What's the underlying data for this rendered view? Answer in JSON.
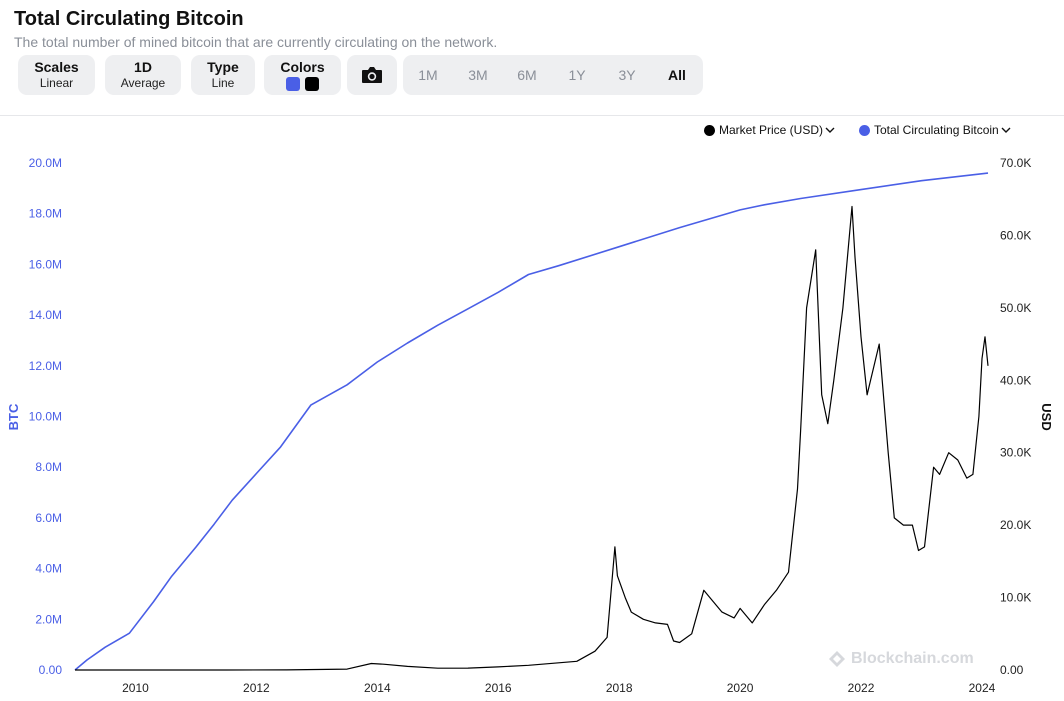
{
  "header": {
    "title": "Total Circulating Bitcoin",
    "subtitle": "The total number of mined bitcoin that are currently circulating on the network."
  },
  "toolbar": {
    "scales": {
      "label": "Scales",
      "value": "Linear"
    },
    "period": {
      "label": "1D",
      "value": "Average"
    },
    "type": {
      "label": "Type",
      "value": "Line"
    },
    "colors": {
      "label": "Colors",
      "swatches": [
        "#4a5fe6",
        "#000000"
      ]
    },
    "camera_icon": "camera-icon",
    "ranges": [
      "1M",
      "3M",
      "6M",
      "1Y",
      "3Y",
      "All"
    ],
    "active_range": "All"
  },
  "legend": {
    "items": [
      {
        "label": "Market Price (USD)",
        "color": "#000000"
      },
      {
        "label": "Total Circulating Bitcoin",
        "color": "#4a5fe6"
      }
    ]
  },
  "watermark": "Blockchain.com",
  "chart_data": {
    "type": "line",
    "xlabel": "",
    "x_ticks": [
      "2010",
      "2012",
      "2014",
      "2016",
      "2018",
      "2020",
      "2022",
      "2024"
    ],
    "xlim": [
      2009.0,
      2024.1
    ],
    "y_left": {
      "label": "BTC",
      "ylim": [
        0,
        20000000
      ],
      "ticks": [
        "0.00",
        "2.0M",
        "4.0M",
        "6.0M",
        "8.0M",
        "10.0M",
        "12.0M",
        "14.0M",
        "16.0M",
        "18.0M",
        "20.0M"
      ]
    },
    "y_right": {
      "label": "USD",
      "ylim": [
        0,
        70000
      ],
      "ticks": [
        "0.00",
        "10.0K",
        "20.0K",
        "30.0K",
        "40.0K",
        "50.0K",
        "60.0K",
        "70.0K"
      ]
    },
    "grid": false,
    "legend_position": "top-right",
    "series": [
      {
        "name": "Total Circulating Bitcoin",
        "axis": "left",
        "color": "#4a5fe6",
        "x": [
          2009.0,
          2009.2,
          2009.5,
          2009.9,
          2010.3,
          2010.6,
          2011.0,
          2011.3,
          2011.6,
          2012.0,
          2012.4,
          2012.9,
          2013.5,
          2014.0,
          2014.5,
          2015.0,
          2015.5,
          2016.0,
          2016.5,
          2017.0,
          2018.0,
          2019.0,
          2020.0,
          2020.4,
          2021.0,
          2022.0,
          2023.0,
          2024.1
        ],
        "values": [
          0,
          400000,
          900000,
          1450000,
          2700000,
          3700000,
          4850000,
          5750000,
          6700000,
          7750000,
          8800000,
          10450000,
          11250000,
          12150000,
          12900000,
          13600000,
          14250000,
          14900000,
          15600000,
          15950000,
          16700000,
          17450000,
          18150000,
          18350000,
          18600000,
          18950000,
          19300000,
          19600000
        ]
      },
      {
        "name": "Market Price (USD)",
        "axis": "right",
        "color": "#000000",
        "x": [
          2009.0,
          2010.5,
          2011.5,
          2012.5,
          2013.5,
          2013.9,
          2014.1,
          2014.5,
          2015.0,
          2015.5,
          2016.0,
          2016.5,
          2017.0,
          2017.3,
          2017.6,
          2017.8,
          2017.93,
          2017.97,
          2018.1,
          2018.2,
          2018.4,
          2018.6,
          2018.8,
          2018.9,
          2019.0,
          2019.2,
          2019.4,
          2019.5,
          2019.7,
          2019.9,
          2020.0,
          2020.2,
          2020.4,
          2020.6,
          2020.8,
          2020.95,
          2021.0,
          2021.1,
          2021.25,
          2021.35,
          2021.45,
          2021.55,
          2021.7,
          2021.85,
          2021.9,
          2022.0,
          2022.1,
          2022.3,
          2022.45,
          2022.55,
          2022.7,
          2022.85,
          2022.95,
          2023.05,
          2023.2,
          2023.3,
          2023.45,
          2023.6,
          2023.75,
          2023.85,
          2023.95,
          2024.0,
          2024.05,
          2024.1
        ],
        "values": [
          0,
          0,
          5,
          10,
          120,
          900,
          800,
          500,
          250,
          260,
          430,
          650,
          1000,
          1200,
          2600,
          4500,
          17000,
          13000,
          10000,
          8000,
          7000,
          6500,
          6300,
          4000,
          3800,
          5000,
          11000,
          10000,
          8000,
          7200,
          8500,
          6500,
          9000,
          11000,
          13500,
          25000,
          33000,
          50000,
          58000,
          38000,
          34000,
          40000,
          50000,
          64000,
          57000,
          46000,
          38000,
          45000,
          30000,
          21000,
          20000,
          20000,
          16500,
          17000,
          28000,
          27000,
          30000,
          29000,
          26500,
          27000,
          35000,
          43000,
          46000,
          42000
        ]
      }
    ]
  }
}
